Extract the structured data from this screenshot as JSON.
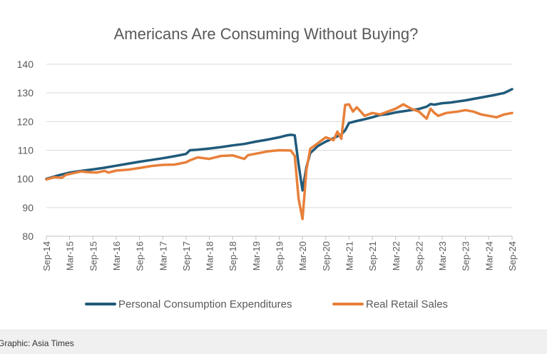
{
  "caption": "Graphic: Asia Times",
  "colors": {
    "pce": "#1f5a7a",
    "retail": "#e8803a",
    "grid": "#d9d9d9",
    "axis": "#bfbfbf",
    "text": "#595959"
  },
  "chart_data": {
    "type": "line",
    "title": "Americans Are Consuming Without Buying?",
    "xlabel": "",
    "ylabel": "",
    "ylim": [
      80,
      140
    ],
    "yticks": [
      80,
      90,
      100,
      110,
      120,
      130,
      140
    ],
    "xlim": [
      0,
      120
    ],
    "xticks": [
      {
        "label": "Sep-14",
        "x": 0
      },
      {
        "label": "Mar-15",
        "x": 6
      },
      {
        "label": "Sep-15",
        "x": 12
      },
      {
        "label": "Mar-16",
        "x": 18
      },
      {
        "label": "Sep-16",
        "x": 24
      },
      {
        "label": "Mar-17",
        "x": 30
      },
      {
        "label": "Sep-17",
        "x": 36
      },
      {
        "label": "Mar-18",
        "x": 42
      },
      {
        "label": "Sep-18",
        "x": 48
      },
      {
        "label": "Mar-19",
        "x": 54
      },
      {
        "label": "Sep-19",
        "x": 60
      },
      {
        "label": "Mar-20",
        "x": 66
      },
      {
        "label": "Sep-20",
        "x": 72
      },
      {
        "label": "Mar-21",
        "x": 78
      },
      {
        "label": "Sep-21",
        "x": 84
      },
      {
        "label": "Mar-22",
        "x": 90
      },
      {
        "label": "Sep-22",
        "x": 96
      },
      {
        "label": "Mar-23",
        "x": 102
      },
      {
        "label": "Sep-23",
        "x": 108
      },
      {
        "label": "Mar-24",
        "x": 114
      },
      {
        "label": "Sep-24",
        "x": 120
      }
    ],
    "legend_position": "bottom",
    "series": [
      {
        "name": "Personal Consumption Expenditures",
        "color": "#1f5a7a",
        "points": [
          [
            0,
            100
          ],
          [
            3,
            101.2
          ],
          [
            6,
            102.2
          ],
          [
            9,
            102.8
          ],
          [
            12,
            103.3
          ],
          [
            15,
            103.9
          ],
          [
            18,
            104.6
          ],
          [
            21,
            105.3
          ],
          [
            24,
            106
          ],
          [
            27,
            106.6
          ],
          [
            30,
            107.2
          ],
          [
            33,
            107.9
          ],
          [
            36,
            108.7
          ],
          [
            37,
            110
          ],
          [
            39,
            110.2
          ],
          [
            42,
            110.6
          ],
          [
            45,
            111.1
          ],
          [
            48,
            111.7
          ],
          [
            51,
            112.2
          ],
          [
            54,
            113
          ],
          [
            57,
            113.7
          ],
          [
            60,
            114.5
          ],
          [
            62,
            115.2
          ],
          [
            63,
            115.4
          ],
          [
            64,
            115.2
          ],
          [
            65,
            105
          ],
          [
            66,
            96
          ],
          [
            67,
            104
          ],
          [
            68,
            109
          ],
          [
            70,
            111.5
          ],
          [
            72,
            113
          ],
          [
            74,
            114.2
          ],
          [
            76,
            115.5
          ],
          [
            77,
            117
          ],
          [
            78,
            119.5
          ],
          [
            80,
            120.2
          ],
          [
            82,
            120.8
          ],
          [
            84,
            121.5
          ],
          [
            86,
            122.3
          ],
          [
            88,
            122.6
          ],
          [
            90,
            123.2
          ],
          [
            92,
            123.6
          ],
          [
            94,
            124
          ],
          [
            96,
            124.4
          ],
          [
            98,
            125.2
          ],
          [
            99,
            126.1
          ],
          [
            100,
            125.9
          ],
          [
            102,
            126.4
          ],
          [
            104,
            126.6
          ],
          [
            106,
            127
          ],
          [
            108,
            127.4
          ],
          [
            110,
            127.9
          ],
          [
            112,
            128.4
          ],
          [
            114,
            128.9
          ],
          [
            116,
            129.4
          ],
          [
            118,
            130
          ],
          [
            120,
            131.3
          ]
        ]
      },
      {
        "name": "Real Retail Sales",
        "color": "#e8803a",
        "points": [
          [
            0,
            99.8
          ],
          [
            2,
            100.6
          ],
          [
            4,
            100.4
          ],
          [
            5,
            101.4
          ],
          [
            7,
            102
          ],
          [
            9,
            102.6
          ],
          [
            11,
            102.3
          ],
          [
            13,
            102.2
          ],
          [
            15,
            102.8
          ],
          [
            16,
            102.2
          ],
          [
            18,
            102.9
          ],
          [
            21,
            103.2
          ],
          [
            24,
            103.8
          ],
          [
            27,
            104.5
          ],
          [
            30,
            104.9
          ],
          [
            33,
            105
          ],
          [
            36,
            105.8
          ],
          [
            37,
            106.5
          ],
          [
            39,
            107.5
          ],
          [
            42,
            107
          ],
          [
            45,
            108
          ],
          [
            48,
            108.2
          ],
          [
            51,
            107
          ],
          [
            52,
            108.3
          ],
          [
            54,
            108.8
          ],
          [
            57,
            109.6
          ],
          [
            60,
            110
          ],
          [
            63,
            109.9
          ],
          [
            64,
            108
          ],
          [
            65,
            93
          ],
          [
            66,
            86
          ],
          [
            67,
            103
          ],
          [
            68,
            110.5
          ],
          [
            70,
            112.5
          ],
          [
            72,
            114.5
          ],
          [
            74,
            113.5
          ],
          [
            75,
            116.5
          ],
          [
            76,
            114
          ],
          [
            77,
            125.8
          ],
          [
            78,
            126
          ],
          [
            79,
            123.5
          ],
          [
            80,
            125
          ],
          [
            82,
            122
          ],
          [
            84,
            123
          ],
          [
            86,
            122.5
          ],
          [
            88,
            123.5
          ],
          [
            90,
            124.5
          ],
          [
            92,
            126
          ],
          [
            94,
            124.5
          ],
          [
            96,
            123.5
          ],
          [
            98,
            121
          ],
          [
            99,
            124.5
          ],
          [
            100,
            123
          ],
          [
            101,
            122
          ],
          [
            103,
            123
          ],
          [
            106,
            123.5
          ],
          [
            108,
            124
          ],
          [
            110,
            123.5
          ],
          [
            112,
            122.5
          ],
          [
            114,
            122
          ],
          [
            116,
            121.5
          ],
          [
            118,
            122.5
          ],
          [
            120,
            123
          ]
        ]
      }
    ]
  }
}
